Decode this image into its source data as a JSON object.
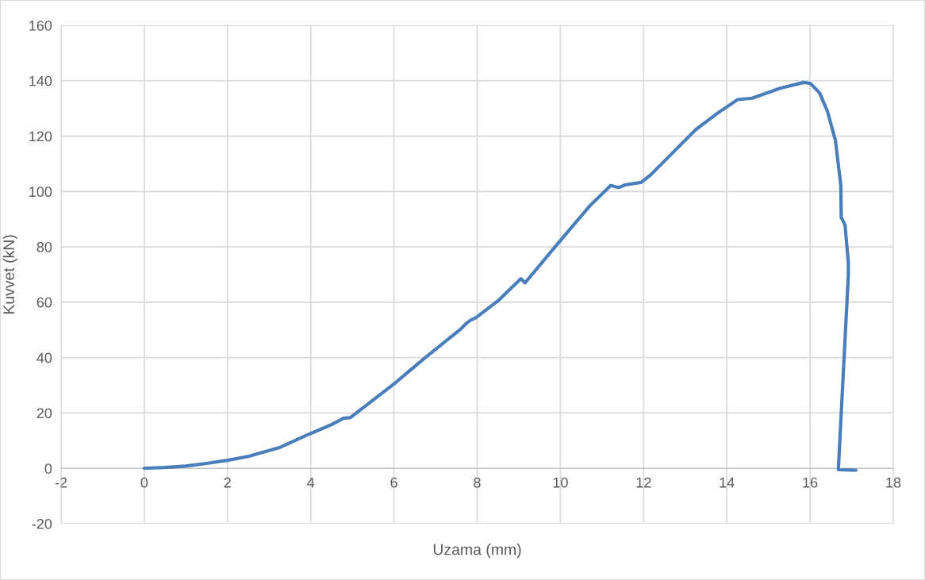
{
  "chart_data": {
    "type": "line",
    "xlabel": "Uzama (mm)",
    "ylabel": "Kuvvet (kN)",
    "xlim": [
      -2,
      18
    ],
    "ylim": [
      -20,
      160
    ],
    "xticks": [
      -2,
      0,
      2,
      4,
      6,
      8,
      10,
      12,
      14,
      16,
      18
    ],
    "yticks": [
      -20,
      0,
      20,
      40,
      60,
      80,
      100,
      120,
      140,
      160
    ],
    "grid": true,
    "marker": "none",
    "line_style": "solid",
    "series": [
      {
        "color": "#4a7ebb",
        "x": [
          0,
          0.5,
          1,
          1.5,
          2.0,
          2.5,
          3.27,
          3.97,
          4.5,
          4.79,
          4.95,
          5.97,
          6.76,
          7.59,
          7.75,
          7.84,
          7.97,
          8.5,
          9.05,
          9.15,
          9.94,
          10.7,
          11.21,
          11.4,
          11.56,
          11.94,
          12.17,
          12.74,
          13.25,
          13.75,
          14.26,
          14.61,
          15.28,
          15.85,
          16.01,
          16.23,
          16.42,
          16.61,
          16.74,
          16.75,
          16.84,
          16.92,
          16.92,
          16.68,
          17.1
        ],
        "values": [
          0,
          0.3,
          0.8,
          1.8,
          2.9,
          4.3,
          7.6,
          12.4,
          15.8,
          18.1,
          18.3,
          30.1,
          40.1,
          50.1,
          52.5,
          53.5,
          54.4,
          60.5,
          68.5,
          67.0,
          81.2,
          94.7,
          102.2,
          101.4,
          102.4,
          103.3,
          106,
          114.6,
          122.3,
          128,
          133.2,
          133.7,
          137.3,
          139.4,
          139,
          135.6,
          128.9,
          118.4,
          102.2,
          90.7,
          87.9,
          74.5,
          69.7,
          -0.5,
          -0.7
        ]
      }
    ]
  }
}
